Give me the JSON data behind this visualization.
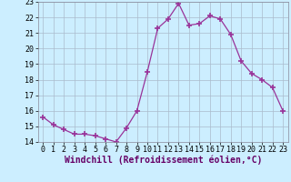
{
  "x": [
    0,
    1,
    2,
    3,
    4,
    5,
    6,
    7,
    8,
    9,
    10,
    11,
    12,
    13,
    14,
    15,
    16,
    17,
    18,
    19,
    20,
    21,
    22,
    23
  ],
  "y": [
    15.6,
    15.1,
    14.8,
    14.5,
    14.5,
    14.4,
    14.2,
    14.0,
    14.9,
    16.0,
    18.5,
    21.3,
    21.9,
    22.9,
    21.5,
    21.6,
    22.1,
    21.9,
    20.9,
    19.2,
    18.4,
    18.0,
    17.5,
    16.0
  ],
  "line_color": "#993399",
  "marker": "+",
  "marker_size": 4,
  "marker_linewidth": 1.2,
  "bg_color": "#cceeff",
  "grid_color": "#aabbcc",
  "ylim": [
    14,
    23
  ],
  "yticks": [
    14,
    15,
    16,
    17,
    18,
    19,
    20,
    21,
    22,
    23
  ],
  "xticks": [
    0,
    1,
    2,
    3,
    4,
    5,
    6,
    7,
    8,
    9,
    10,
    11,
    12,
    13,
    14,
    15,
    16,
    17,
    18,
    19,
    20,
    21,
    22,
    23
  ],
  "xlabel": "Windchill (Refroidissement éolien,°C)",
  "xlabel_fontsize": 7,
  "tick_fontsize": 6,
  "spine_color": "#888899"
}
